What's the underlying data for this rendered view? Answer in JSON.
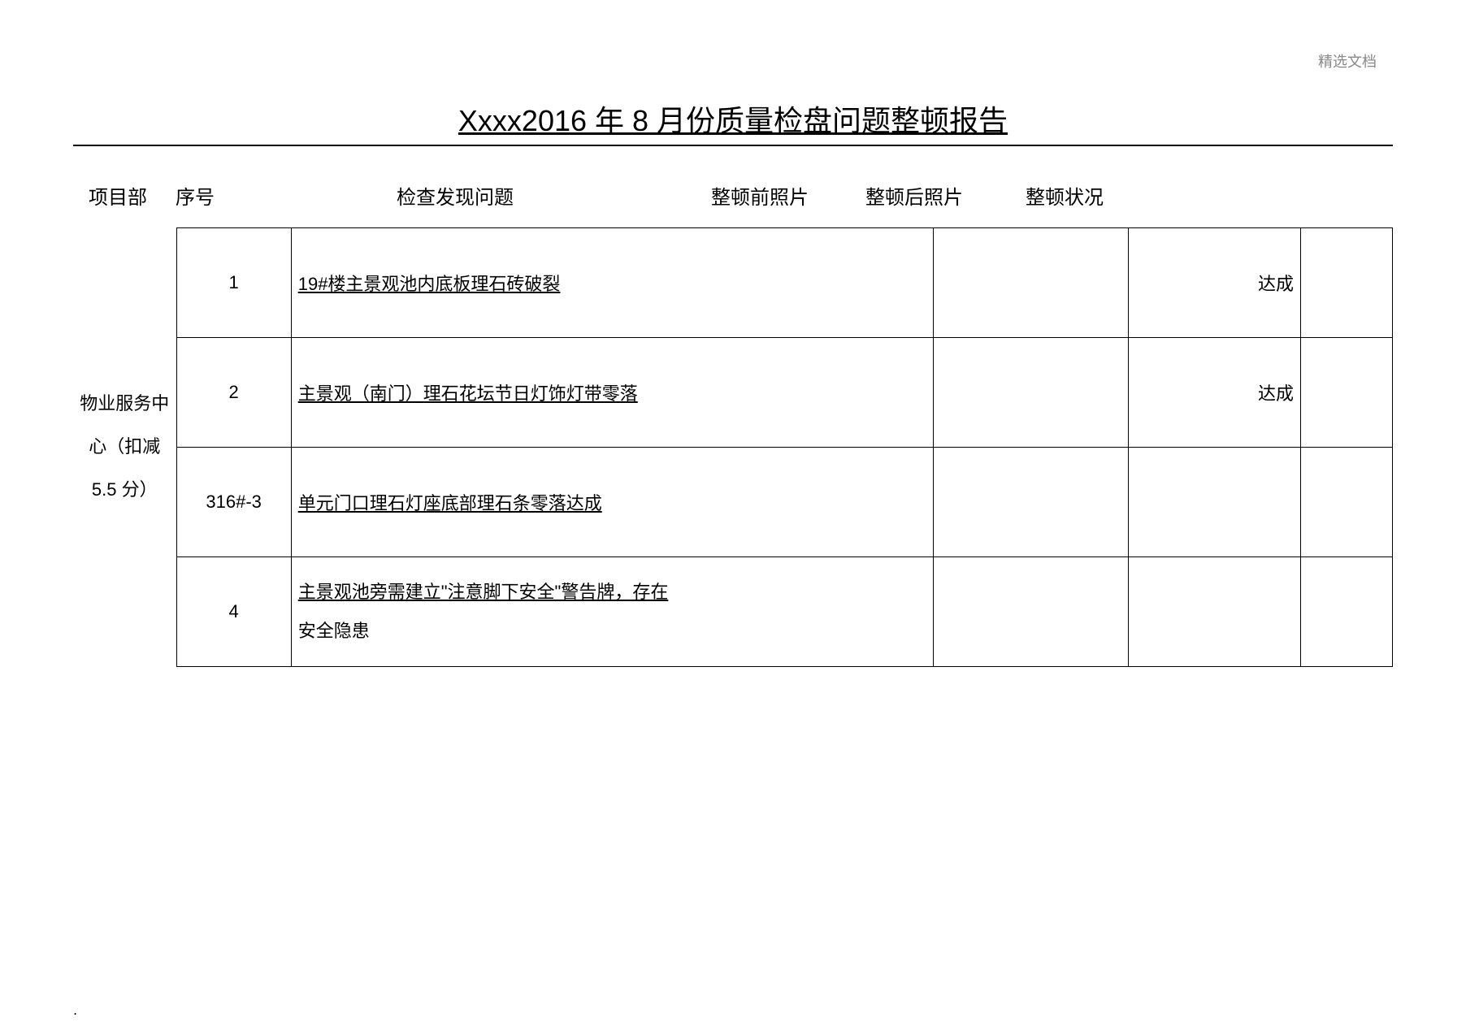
{
  "watermark": "精选文档",
  "title": "Xxxx2016 年 8 月份质量检盘问题整顿报告",
  "headers": {
    "dept": "项目部",
    "seq": "序号",
    "issue": "检查发现问题",
    "photo_before": "整顿前照片",
    "photo_after": "整顿后照片",
    "status": "整顿状况"
  },
  "dept_label": "物业服务中心（扣减 5.5 分）",
  "rows": [
    {
      "seq": "1",
      "issue": "19#楼主景观池内底板理石砖破裂",
      "status": "达成"
    },
    {
      "seq": "2",
      "issue": "主景观（南门）理石花坛节日灯饰灯带零落",
      "status": "达成"
    },
    {
      "seq": "316#-3",
      "issue": "单元门口理石灯座底部理石条零落达成",
      "status": ""
    },
    {
      "seq": "4",
      "issue_line1": "主景观池旁需建立\"注意脚下安全\"警告牌，存在",
      "issue_line2": "安全隐患",
      "status": ""
    }
  ],
  "footer_dot": "."
}
